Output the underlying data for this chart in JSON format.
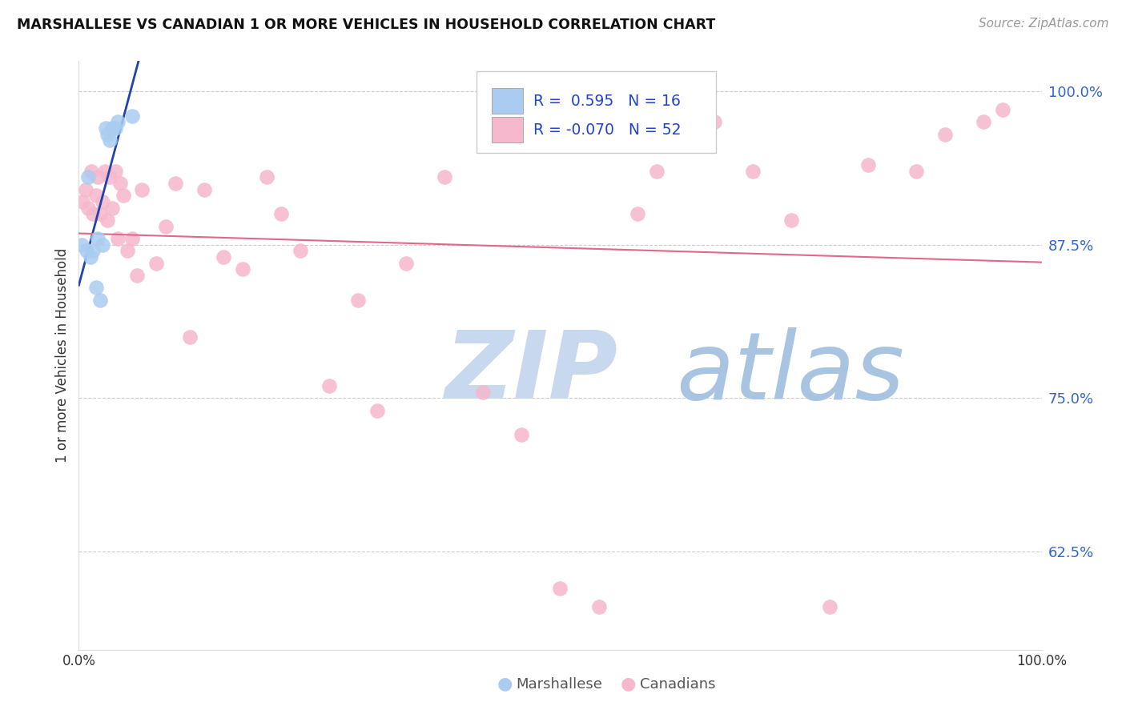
{
  "title": "MARSHALLESE VS CANADIAN 1 OR MORE VEHICLES IN HOUSEHOLD CORRELATION CHART",
  "source": "Source: ZipAtlas.com",
  "ylabel": "1 or more Vehicles in Household",
  "yticks": [
    0.625,
    0.75,
    0.875,
    1.0
  ],
  "ytick_labels": [
    "62.5%",
    "75.0%",
    "87.5%",
    "100.0%"
  ],
  "xlim": [
    0.0,
    1.0
  ],
  "ylim": [
    0.545,
    1.025
  ],
  "blue_R": 0.595,
  "blue_N": 16,
  "pink_R": -0.07,
  "pink_N": 52,
  "blue_color": "#aaccf0",
  "pink_color": "#f5b8cc",
  "blue_line_color": "#2244aa",
  "pink_line_color": "#e06888",
  "watermark_zip": "ZIP",
  "watermark_atlas": "atlas",
  "watermark_color_zip": "#c8d8ee",
  "watermark_color_atlas": "#a8c4e0",
  "blue_x": [
    0.003,
    0.008,
    0.01,
    0.012,
    0.015,
    0.018,
    0.02,
    0.022,
    0.025,
    0.028,
    0.03,
    0.032,
    0.035,
    0.038,
    0.04,
    0.055
  ],
  "blue_y": [
    0.875,
    0.87,
    0.93,
    0.865,
    0.87,
    0.84,
    0.88,
    0.83,
    0.875,
    0.97,
    0.965,
    0.96,
    0.97,
    0.97,
    0.975,
    0.98
  ],
  "pink_x": [
    0.004,
    0.007,
    0.01,
    0.013,
    0.015,
    0.018,
    0.02,
    0.022,
    0.025,
    0.027,
    0.03,
    0.032,
    0.035,
    0.038,
    0.04,
    0.043,
    0.046,
    0.05,
    0.055,
    0.06,
    0.065,
    0.08,
    0.09,
    0.1,
    0.115,
    0.13,
    0.15,
    0.17,
    0.195,
    0.21,
    0.23,
    0.26,
    0.29,
    0.31,
    0.34,
    0.38,
    0.42,
    0.46,
    0.5,
    0.54,
    0.58,
    0.6,
    0.64,
    0.66,
    0.7,
    0.74,
    0.78,
    0.82,
    0.87,
    0.9,
    0.94,
    0.96
  ],
  "pink_y": [
    0.91,
    0.92,
    0.905,
    0.935,
    0.9,
    0.915,
    0.93,
    0.9,
    0.91,
    0.935,
    0.895,
    0.93,
    0.905,
    0.935,
    0.88,
    0.925,
    0.915,
    0.87,
    0.88,
    0.85,
    0.92,
    0.86,
    0.89,
    0.925,
    0.8,
    0.92,
    0.865,
    0.855,
    0.93,
    0.9,
    0.87,
    0.76,
    0.83,
    0.74,
    0.86,
    0.93,
    0.755,
    0.72,
    0.595,
    0.58,
    0.9,
    0.935,
    0.965,
    0.975,
    0.935,
    0.895,
    0.58,
    0.94,
    0.935,
    0.965,
    0.975,
    0.985
  ]
}
